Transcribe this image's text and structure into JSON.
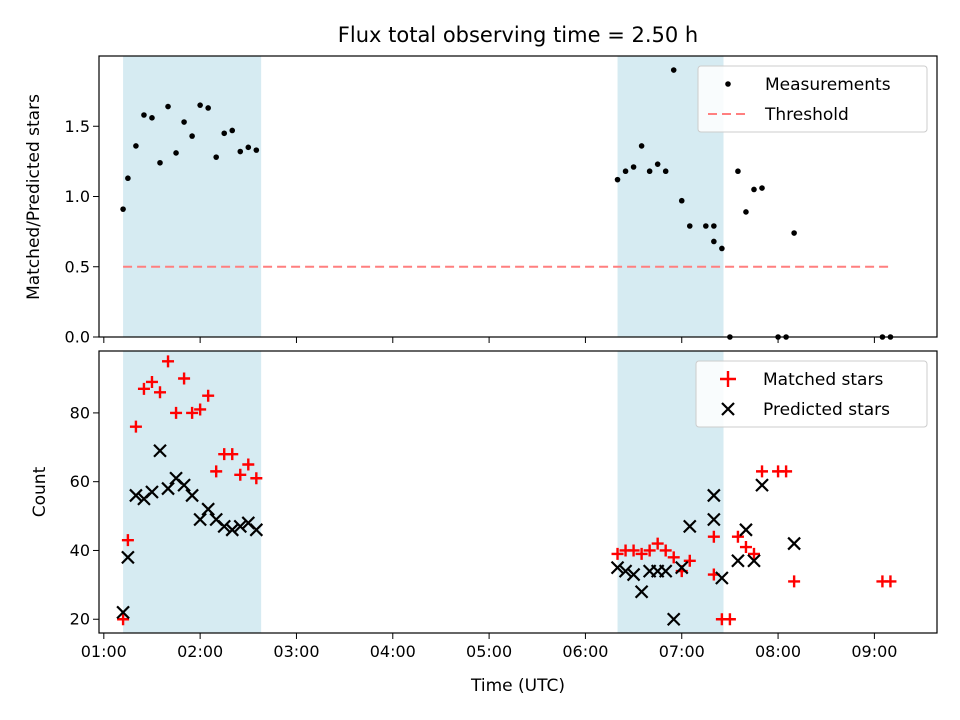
{
  "figure": {
    "title": "Flux total observing time = 2.50 h"
  },
  "chart_data": [
    {
      "type": "scatter",
      "title": "Flux total observing time = 2.50 h",
      "xlabel": "",
      "ylabel": "Matched/Predicted stars",
      "xlim": [
        "00:57",
        "09:39"
      ],
      "ylim": [
        0,
        2.0
      ],
      "y_ticks": [
        "0.0",
        "0.5",
        "1.0",
        "1.5"
      ],
      "shaded_intervals": [
        [
          "01:12",
          "02:38"
        ],
        [
          "06:20",
          "07:26"
        ]
      ],
      "legend": {
        "position": "top-right",
        "entries": [
          "Measurements",
          "Threshold"
        ]
      },
      "series": [
        {
          "name": "Measurements",
          "marker": "dot",
          "color": "#000000",
          "points": [
            [
              "01:12",
              0.91
            ],
            [
              "01:15",
              1.13
            ],
            [
              "01:20",
              1.36
            ],
            [
              "01:25",
              1.58
            ],
            [
              "01:30",
              1.56
            ],
            [
              "01:35",
              1.24
            ],
            [
              "01:40",
              1.64
            ],
            [
              "01:45",
              1.31
            ],
            [
              "01:50",
              1.53
            ],
            [
              "01:55",
              1.43
            ],
            [
              "02:00",
              1.65
            ],
            [
              "02:05",
              1.63
            ],
            [
              "02:10",
              1.28
            ],
            [
              "02:15",
              1.45
            ],
            [
              "02:20",
              1.47
            ],
            [
              "02:25",
              1.32
            ],
            [
              "02:30",
              1.35
            ],
            [
              "02:35",
              1.33
            ],
            [
              "06:20",
              1.12
            ],
            [
              "06:25",
              1.18
            ],
            [
              "06:30",
              1.21
            ],
            [
              "06:35",
              1.36
            ],
            [
              "06:40",
              1.18
            ],
            [
              "06:45",
              1.23
            ],
            [
              "06:50",
              1.18
            ],
            [
              "06:55",
              1.9
            ],
            [
              "07:00",
              0.97
            ],
            [
              "07:05",
              0.79
            ],
            [
              "07:15",
              0.79
            ],
            [
              "07:20",
              0.79
            ],
            [
              "07:20",
              0.68
            ],
            [
              "07:25",
              0.63
            ],
            [
              "07:30",
              0.0
            ],
            [
              "07:35",
              1.18
            ],
            [
              "07:40",
              0.89
            ],
            [
              "07:45",
              1.05
            ],
            [
              "07:50",
              1.06
            ],
            [
              "08:00",
              0.0
            ],
            [
              "08:05",
              0.0
            ],
            [
              "08:10",
              0.74
            ],
            [
              "09:05",
              0.0
            ],
            [
              "09:10",
              0.0
            ]
          ]
        },
        {
          "name": "Threshold",
          "marker": "dashed-line",
          "color": "#ff7f7f",
          "points": [
            [
              "01:12",
              0.5
            ],
            [
              "09:10",
              0.5
            ]
          ]
        }
      ]
    },
    {
      "type": "scatter",
      "xlabel": "Time (UTC)",
      "ylabel": "Count",
      "xlim": [
        "00:57",
        "09:39"
      ],
      "ylim": [
        16,
        98
      ],
      "x_ticks": [
        "01:00",
        "02:00",
        "03:00",
        "04:00",
        "05:00",
        "06:00",
        "07:00",
        "08:00",
        "09:00"
      ],
      "y_ticks": [
        "20",
        "40",
        "60",
        "80"
      ],
      "shaded_intervals": [
        [
          "01:12",
          "02:38"
        ],
        [
          "06:20",
          "07:26"
        ]
      ],
      "legend": {
        "position": "top-right",
        "entries": [
          "Matched stars",
          "Predicted stars"
        ]
      },
      "series": [
        {
          "name": "Matched stars",
          "marker": "plus",
          "color": "#ff0000",
          "points": [
            [
              "01:12",
              20
            ],
            [
              "01:15",
              43
            ],
            [
              "01:20",
              76
            ],
            [
              "01:25",
              87
            ],
            [
              "01:30",
              89
            ],
            [
              "01:35",
              86
            ],
            [
              "01:40",
              95
            ],
            [
              "01:45",
              80
            ],
            [
              "01:50",
              90
            ],
            [
              "01:55",
              80
            ],
            [
              "02:00",
              81
            ],
            [
              "02:05",
              85
            ],
            [
              "02:10",
              63
            ],
            [
              "02:15",
              68
            ],
            [
              "02:20",
              68
            ],
            [
              "02:25",
              62
            ],
            [
              "02:30",
              65
            ],
            [
              "02:35",
              61
            ],
            [
              "06:20",
              39
            ],
            [
              "06:25",
              40
            ],
            [
              "06:30",
              40
            ],
            [
              "06:35",
              39
            ],
            [
              "06:40",
              40
            ],
            [
              "06:45",
              42
            ],
            [
              "06:50",
              40
            ],
            [
              "06:55",
              38
            ],
            [
              "07:00",
              34
            ],
            [
              "07:05",
              37
            ],
            [
              "07:20",
              44
            ],
            [
              "07:20",
              33
            ],
            [
              "07:25",
              20
            ],
            [
              "07:30",
              20
            ],
            [
              "07:35",
              44
            ],
            [
              "07:40",
              41
            ],
            [
              "07:45",
              39
            ],
            [
              "07:50",
              63
            ],
            [
              "08:00",
              63
            ],
            [
              "08:05",
              63
            ],
            [
              "08:10",
              31
            ],
            [
              "09:05",
              31
            ],
            [
              "09:10",
              31
            ]
          ]
        },
        {
          "name": "Predicted stars",
          "marker": "x",
          "color": "#000000",
          "points": [
            [
              "01:12",
              22
            ],
            [
              "01:15",
              38
            ],
            [
              "01:20",
              56
            ],
            [
              "01:25",
              55
            ],
            [
              "01:30",
              57
            ],
            [
              "01:35",
              69
            ],
            [
              "01:40",
              58
            ],
            [
              "01:45",
              61
            ],
            [
              "01:50",
              59
            ],
            [
              "01:55",
              56
            ],
            [
              "02:00",
              49
            ],
            [
              "02:05",
              52
            ],
            [
              "02:10",
              49
            ],
            [
              "02:15",
              47
            ],
            [
              "02:20",
              46
            ],
            [
              "02:25",
              47
            ],
            [
              "02:30",
              48
            ],
            [
              "02:35",
              46
            ],
            [
              "06:20",
              35
            ],
            [
              "06:25",
              34
            ],
            [
              "06:30",
              33
            ],
            [
              "06:35",
              28
            ],
            [
              "06:40",
              34
            ],
            [
              "06:45",
              34
            ],
            [
              "06:50",
              34
            ],
            [
              "06:55",
              20
            ],
            [
              "07:00",
              35
            ],
            [
              "07:05",
              47
            ],
            [
              "07:20",
              56
            ],
            [
              "07:20",
              49
            ],
            [
              "07:25",
              32
            ],
            [
              "07:35",
              37
            ],
            [
              "07:40",
              46
            ],
            [
              "07:45",
              37
            ],
            [
              "07:50",
              59
            ],
            [
              "08:10",
              42
            ]
          ]
        }
      ]
    }
  ]
}
